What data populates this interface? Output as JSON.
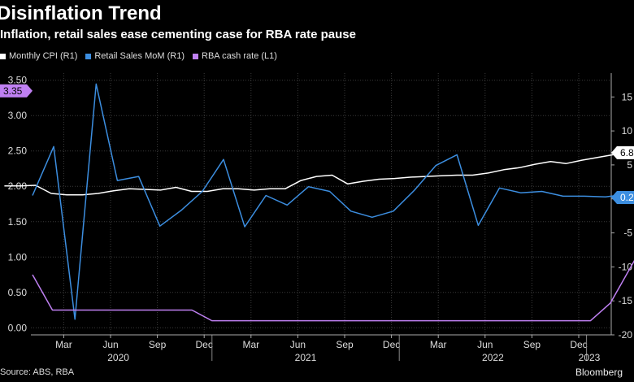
{
  "title": "Disinflation Trend",
  "subtitle": "Inflation, retail sales ease cementing case for RBA rate pause",
  "source": "Source: ABS, RBA",
  "brand": "Bloomberg",
  "chart_data": {
    "type": "line",
    "legend_placement": "top-left",
    "grid": true,
    "x_month_labels": [
      "Mar",
      "Jun",
      "Sep",
      "Dec",
      "Mar",
      "Jun",
      "Sep",
      "Dec",
      "Mar",
      "Jun",
      "Sep",
      "Dec"
    ],
    "x_year_labels": [
      "2020",
      "2021",
      "2022",
      "2023"
    ],
    "left_axis": {
      "ticks": [
        "0.00",
        "0.50",
        "1.00",
        "1.50",
        "2.00",
        "2.50",
        "3.00",
        "3.50"
      ],
      "range": [
        -0.1,
        3.6
      ]
    },
    "right_axis": {
      "ticks": [
        "-20",
        "-15",
        "-10",
        "-5",
        "0",
        "5",
        "10",
        "15"
      ],
      "range": [
        -20,
        18.5
      ]
    },
    "last_value_labels": {
      "cash_rate": "3.35",
      "cpi": "6.8",
      "retail": "0.2"
    },
    "series": [
      {
        "name": "Monthly CPI (R1)",
        "color": "#ffffff",
        "axis": "right",
        "values": [
          1.9,
          1.9,
          2.0,
          0.8,
          0.6,
          0.6,
          0.8,
          1.2,
          1.5,
          1.4,
          1.3,
          1.7,
          1.1,
          1.1,
          1.5,
          1.5,
          1.3,
          1.5,
          1.5,
          2.7,
          3.3,
          3.5,
          2.2,
          2.6,
          2.9,
          3.0,
          3.2,
          3.3,
          3.4,
          3.5,
          3.5,
          3.8,
          4.3,
          4.6,
          5.1,
          5.5,
          5.2,
          5.7,
          6.1,
          6.5,
          6.9,
          7.0,
          7.0,
          7.3,
          7.0,
          7.3,
          8.4,
          7.4,
          6.8
        ]
      },
      {
        "name": "Retail Sales MoM (R1)",
        "color": "#3c8ee0",
        "axis": "right",
        "values": [
          0.5,
          7.7,
          -17.7,
          16.9,
          2.7,
          3.3,
          -4.0,
          -1.7,
          1.1,
          5.8,
          -4.1,
          0.5,
          -0.9,
          1.8,
          1.1,
          -1.8,
          -2.7,
          -1.8,
          1.3,
          4.9,
          6.5,
          -3.9,
          1.6,
          0.9,
          1.1,
          0.4,
          0.4,
          0.3,
          0.7,
          0.6,
          0.6,
          0.3,
          1.3,
          -3.9,
          1.8,
          0.2
        ]
      },
      {
        "name": "RBA cash rate (L1)",
        "color": "#bf80f2",
        "axis": "left",
        "values": [
          0.75,
          0.25,
          0.25,
          0.25,
          0.25,
          0.25,
          0.25,
          0.25,
          0.25,
          0.1,
          0.1,
          0.1,
          0.1,
          0.1,
          0.1,
          0.1,
          0.1,
          0.1,
          0.1,
          0.1,
          0.1,
          0.1,
          0.1,
          0.1,
          0.1,
          0.1,
          0.1,
          0.1,
          0.1,
          0.35,
          0.85,
          1.35,
          1.85,
          2.35,
          2.6,
          2.85,
          3.1,
          3.1,
          3.35
        ]
      }
    ]
  }
}
